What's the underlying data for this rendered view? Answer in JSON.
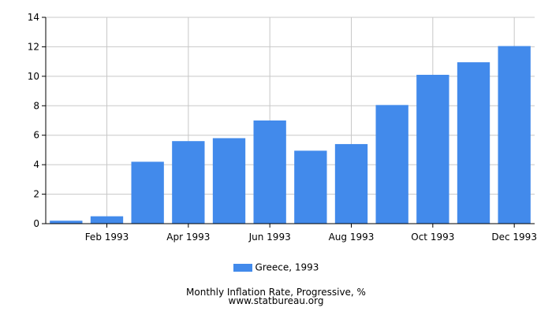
{
  "chart_data": {
    "type": "bar",
    "categories": [
      "Jan 1993",
      "Feb 1993",
      "Mar 1993",
      "Apr 1993",
      "May 1993",
      "Jun 1993",
      "Jul 1993",
      "Aug 1993",
      "Sep 1993",
      "Oct 1993",
      "Nov 1993",
      "Dec 1993"
    ],
    "tick_labels": [
      "Feb 1993",
      "Apr 1993",
      "Jun 1993",
      "Aug 1993",
      "Oct 1993",
      "Dec 1993"
    ],
    "series": [
      {
        "name": "Greece, 1993",
        "values": [
          0.2,
          0.5,
          4.2,
          5.6,
          5.8,
          7.0,
          4.95,
          5.4,
          8.05,
          10.1,
          10.95,
          12.05
        ]
      }
    ],
    "ylim": [
      0,
      14
    ],
    "yticks": [
      0,
      2,
      4,
      6,
      8,
      10,
      12,
      14
    ],
    "grid": true,
    "legend_position": "bottom",
    "bar_color": "#428aeb",
    "title": "Monthly Inflation Rate, Progressive, %",
    "xlabel": "",
    "ylabel": ""
  },
  "footer": {
    "title": "Monthly Inflation Rate, Progressive, %",
    "source": "www.statbureau.org"
  }
}
